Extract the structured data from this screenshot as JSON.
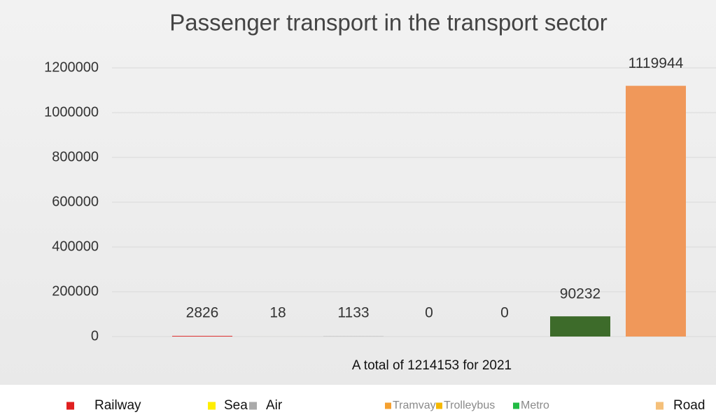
{
  "chart_data": {
    "type": "bar",
    "title": "Passenger transport in the transport sector",
    "subtitle": "A total of 1214153 for 2021",
    "categories": [
      "Railway",
      "Sea",
      "Air",
      "Tramvay",
      "Trolleybus",
      "Metro",
      "Road"
    ],
    "values": [
      2826,
      18,
      1133,
      0,
      0,
      90232,
      1119944
    ],
    "colors": [
      "#e02020",
      "#f2e200",
      "#a5a5a5",
      "#f0a030",
      "#f5b800",
      "#3d6b2a",
      "#f0985a"
    ],
    "legend_colors": [
      "#e02020",
      "#ffee00",
      "#aaaaaa",
      "#f5a030",
      "#f5b800",
      "#22bb44",
      "#f5c07a"
    ],
    "ylim": [
      0,
      1200000
    ],
    "yticks": [
      0,
      200000,
      400000,
      600000,
      800000,
      1000000,
      1200000
    ],
    "grid": true
  }
}
